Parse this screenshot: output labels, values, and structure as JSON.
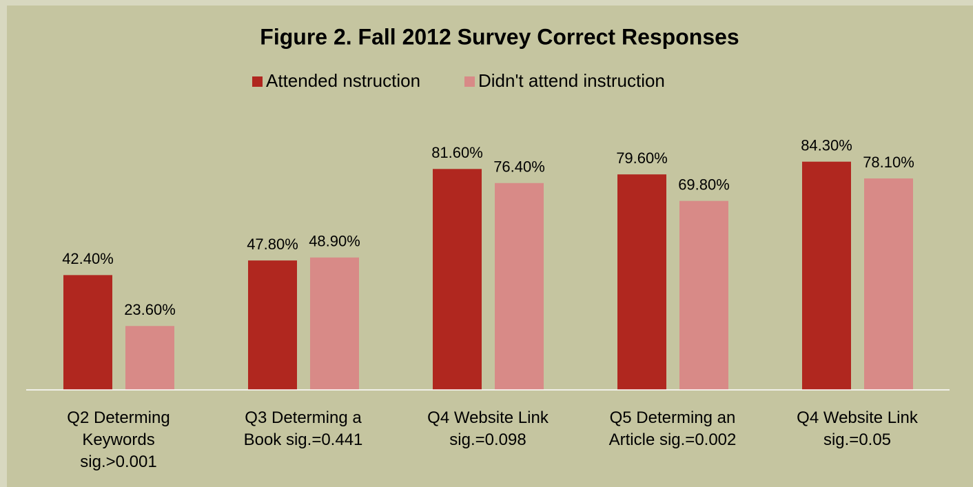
{
  "chart_data": {
    "type": "bar",
    "title": "Figure 2. Fall 2012 Survey Correct Responses",
    "categories": [
      "Q2 Determing Keywords sig.>0.001",
      "Q3 Determing a Book sig.=0.441",
      "Q4 Website Link sig.=0.098",
      "Q5 Determing an Article sig.=0.002",
      "Q4 Website Link sig.=0.05"
    ],
    "series": [
      {
        "name": "Attended nstruction",
        "color": "#b0271f",
        "values": [
          42.4,
          47.8,
          81.6,
          79.6,
          84.3
        ],
        "value_labels": [
          "42.40%",
          "47.80%",
          "81.60%",
          "79.60%",
          "84.30%"
        ]
      },
      {
        "name": "Didn't attend instruction",
        "color": "#d88a87",
        "values": [
          23.6,
          48.9,
          76.4,
          69.8,
          78.1
        ],
        "value_labels": [
          "23.60%",
          "48.90%",
          "76.40%",
          "69.80%",
          "78.10%"
        ]
      }
    ],
    "legend": "top"
  }
}
